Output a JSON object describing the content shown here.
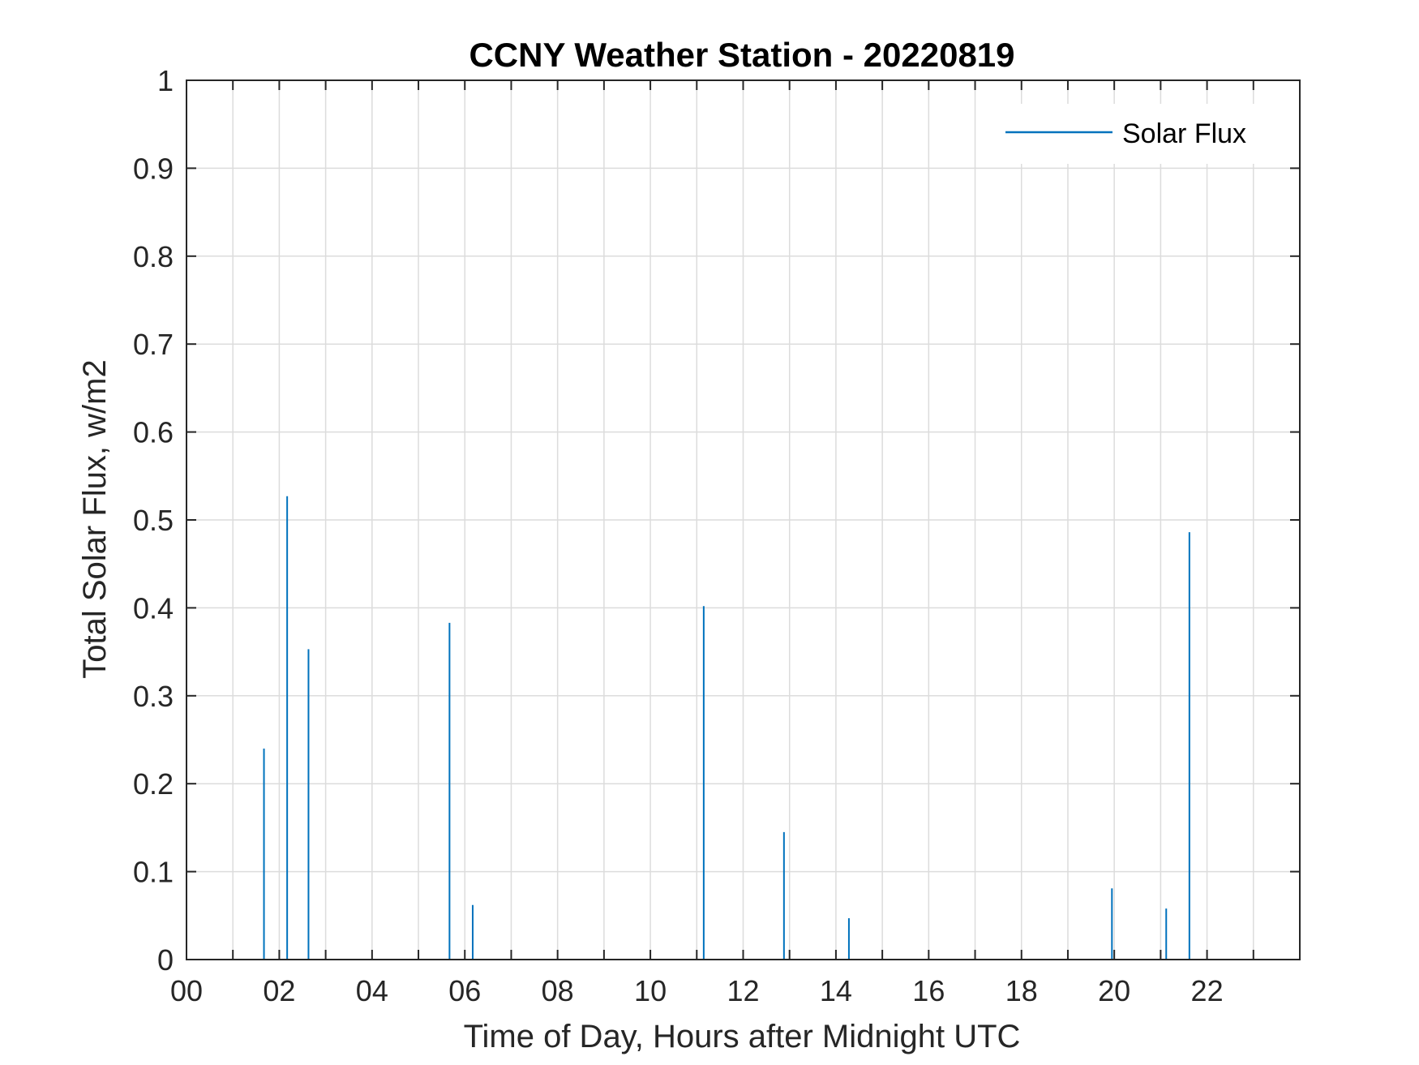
{
  "chart_data": {
    "type": "bar",
    "title": "CCNY Weather Station - 20220819",
    "xlabel": "Time of Day, Hours after Midnight UTC",
    "ylabel": "Total Solar Flux, w/m2",
    "xlim": [
      0,
      24
    ],
    "ylim": [
      0,
      1
    ],
    "xticks": [
      0,
      2,
      4,
      6,
      8,
      10,
      12,
      14,
      16,
      18,
      20,
      22
    ],
    "xtick_labels": [
      "00",
      "02",
      "04",
      "06",
      "08",
      "10",
      "12",
      "14",
      "16",
      "18",
      "20",
      "22"
    ],
    "yticks": [
      0,
      0.1,
      0.2,
      0.3,
      0.4,
      0.5,
      0.6,
      0.7,
      0.8,
      0.9,
      1
    ],
    "ytick_labels": [
      "0",
      "0.1",
      "0.2",
      "0.3",
      "0.4",
      "0.5",
      "0.6",
      "0.7",
      "0.8",
      "0.9",
      "1"
    ],
    "grid": true,
    "legend_position": "top-right",
    "series": [
      {
        "name": "Solar Flux",
        "color": "#0072BD",
        "x": [
          1.67,
          2.17,
          2.63,
          5.67,
          6.17,
          11.15,
          12.88,
          14.28,
          19.95,
          21.12,
          21.62
        ],
        "y": [
          0.24,
          0.527,
          0.353,
          0.383,
          0.062,
          0.402,
          0.145,
          0.047,
          0.081,
          0.058,
          0.486
        ]
      }
    ]
  }
}
